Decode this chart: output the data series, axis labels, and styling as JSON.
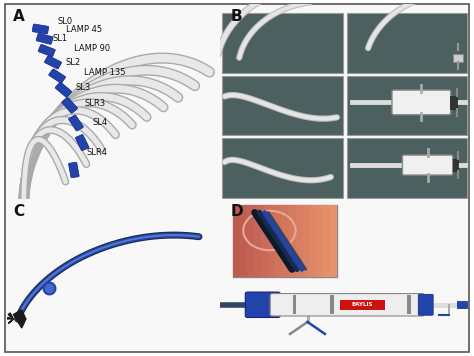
{
  "bg_color": "#ffffff",
  "fig_width": 4.74,
  "fig_height": 3.56,
  "dpi": 100,
  "panel_A": {
    "catheter_labels": [
      "SL0",
      "LAMP 45",
      "SL1",
      "LAMP 90",
      "SL2",
      "LAMP 135",
      "SL3",
      "SLR3",
      "SL4",
      "SLR4"
    ],
    "bg": "#f0f0f0"
  },
  "panel_B": {
    "bg": "#5a6e6a",
    "grid_color": "#cccccc"
  },
  "panel_C": {
    "bg": "#f0f0f0"
  },
  "panel_D": {
    "bg": "#f0f0f0",
    "inset_bg": "#c87060"
  }
}
